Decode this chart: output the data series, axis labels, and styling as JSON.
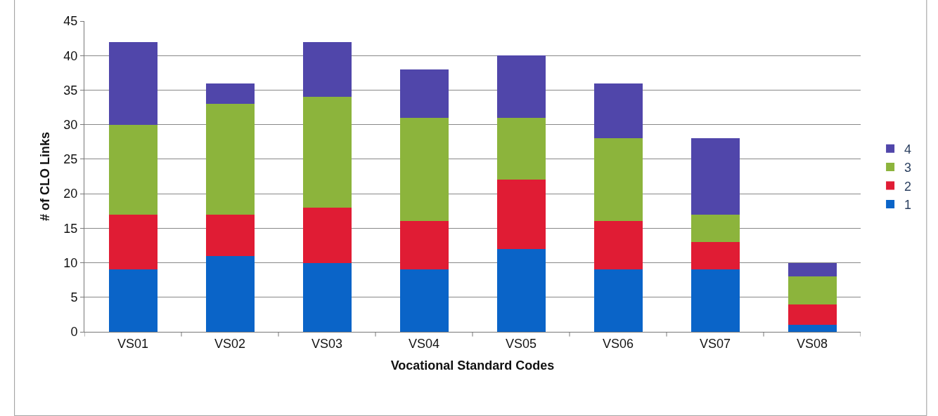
{
  "chart_data": {
    "type": "bar",
    "stacked": true,
    "xlabel": "Vocational Standard Codes",
    "ylabel": "# of CLO Links",
    "categories": [
      "VS01",
      "VS02",
      "VS03",
      "VS04",
      "VS05",
      "VS06",
      "VS07",
      "VS08"
    ],
    "series": [
      {
        "name": "1",
        "color": "#0a64c8",
        "values": [
          9,
          11,
          10,
          9,
          12,
          9,
          9,
          1
        ]
      },
      {
        "name": "2",
        "color": "#e01c34",
        "values": [
          8,
          6,
          8,
          7,
          10,
          7,
          4,
          3
        ]
      },
      {
        "name": "3",
        "color": "#8cb43c",
        "values": [
          13,
          16,
          16,
          15,
          9,
          12,
          4,
          4
        ]
      },
      {
        "name": "4",
        "color": "#5046aa",
        "values": [
          12,
          3,
          8,
          7,
          9,
          8,
          11,
          2
        ]
      }
    ],
    "ylim": [
      0,
      45
    ],
    "yticks": [
      0,
      5,
      10,
      15,
      20,
      25,
      30,
      35,
      40,
      45
    ],
    "grid": "y",
    "legend": "right"
  }
}
